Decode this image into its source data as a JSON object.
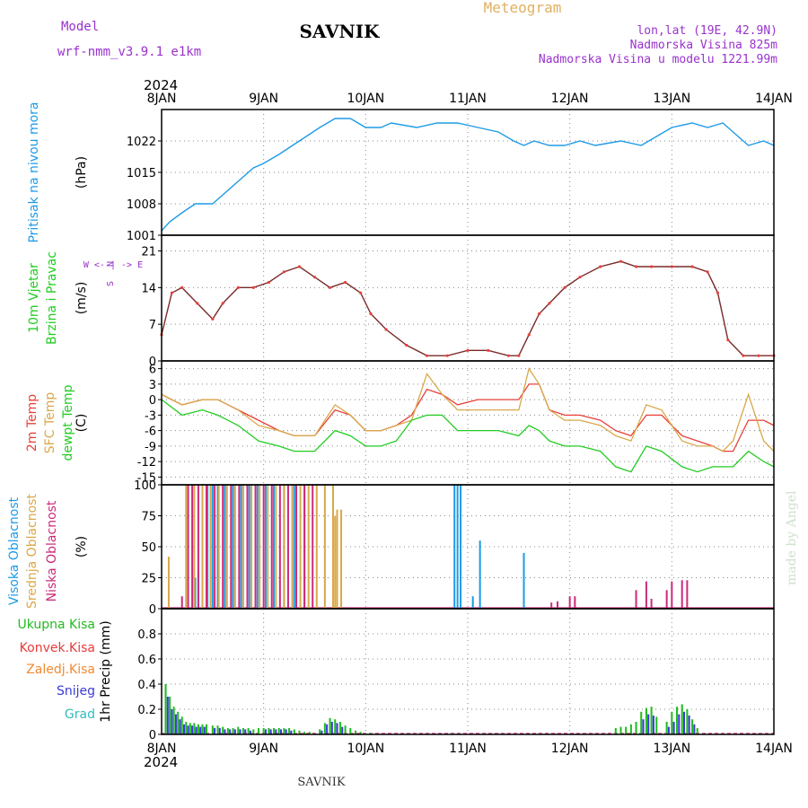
{
  "header": {
    "model_label": "Model",
    "model_name": "wrf-nmm_v3.9.1 e1km",
    "title": "SAVNIK",
    "subtitle": "Meteogram",
    "lonlat": "lon,lat (19E, 42.9N)",
    "altitude": "Nadmorska Visina 825m",
    "model_altitude": "Nadmorska Visina u modelu 1221.99m",
    "year_top": "2024",
    "year_bottom": "2024",
    "footer": "SAVNIK",
    "watermark": "made by Angel"
  },
  "colors": {
    "pressure": "#1e9be6",
    "temp2m": "#e8403a",
    "sfc": "#d9a84a",
    "dew": "#22cc22",
    "high_cloud": "#1e9be6",
    "mid_cloud": "#d9a84a",
    "low_cloud": "#cc2a7a",
    "total_precip": "#22bb22",
    "conv_precip": "#e83a3a",
    "frozen_precip": "#f08a30",
    "snow": "#3a3ad8",
    "hail": "#33bbbb",
    "wind_label": "#22cc22",
    "wind_axis": "#9932cc",
    "header_purple": "#9932cc",
    "header_gold": "#e0b060"
  },
  "x_axis": {
    "days": [
      "8JAN",
      "9JAN",
      "10JAN",
      "11JAN",
      "12JAN",
      "13JAN",
      "14JAN"
    ]
  },
  "chart_data": [
    {
      "id": "pressure",
      "type": "line",
      "ylabel_lines": [
        "Pritisak na nivou mora"
      ],
      "unit": "(hPa)",
      "ylim": [
        1001,
        1029
      ],
      "yticks": [
        1001,
        1008,
        1015,
        1022
      ],
      "x_days": [
        0,
        0.08,
        0.2,
        0.33,
        0.5,
        0.6,
        0.75,
        0.9,
        1.0,
        1.15,
        1.35,
        1.55,
        1.7,
        1.85,
        2.0,
        2.15,
        2.25,
        2.5,
        2.7,
        2.9,
        3.1,
        3.3,
        3.45,
        3.55,
        3.65,
        3.8,
        3.95,
        4.1,
        4.25,
        4.5,
        4.7,
        4.85,
        5.0,
        5.2,
        5.35,
        5.5,
        5.6,
        5.75,
        5.9,
        6.0
      ],
      "values": [
        1002,
        1004,
        1006,
        1008,
        1008,
        1010,
        1013,
        1016,
        1017,
        1019,
        1022,
        1025,
        1027,
        1027,
        1025,
        1025,
        1026,
        1025,
        1026,
        1026,
        1025,
        1024,
        1022,
        1021,
        1022,
        1021,
        1021,
        1022,
        1021,
        1022,
        1021,
        1023,
        1025,
        1026,
        1025,
        1026,
        1024,
        1021,
        1022,
        1021
      ],
      "grid": true
    },
    {
      "id": "wind",
      "type": "line",
      "ylabel_lines": [
        "10m Vjetar",
        "Brzina i Pravac"
      ],
      "unit": "(m/s)",
      "direction_key": [
        "N",
        "W <- | -> E",
        "S"
      ],
      "ylim": [
        0,
        24
      ],
      "yticks": [
        0,
        7,
        14,
        21
      ],
      "x_days": [
        0,
        0.1,
        0.2,
        0.35,
        0.5,
        0.6,
        0.75,
        0.9,
        1.05,
        1.2,
        1.35,
        1.5,
        1.65,
        1.8,
        1.95,
        2.05,
        2.2,
        2.4,
        2.6,
        2.8,
        3.0,
        3.2,
        3.4,
        3.5,
        3.6,
        3.7,
        3.8,
        3.95,
        4.1,
        4.3,
        4.5,
        4.65,
        4.8,
        5.0,
        5.2,
        5.35,
        5.45,
        5.55,
        5.7,
        5.85,
        6.0
      ],
      "values": [
        5,
        13,
        14,
        11,
        8,
        11,
        14,
        14,
        15,
        17,
        18,
        16,
        14,
        15,
        13,
        9,
        6,
        3,
        1,
        1,
        2,
        2,
        1,
        1,
        5,
        9,
        11,
        14,
        16,
        18,
        19,
        18,
        18,
        18,
        18,
        17,
        13,
        4,
        1,
        1,
        1
      ],
      "grid": true
    },
    {
      "id": "temperature",
      "type": "line",
      "ylabel_lines": [
        "2m Temp",
        "SFC Temp",
        "dewpt Temp"
      ],
      "unit": "(C)",
      "ylim": [
        -16.5,
        7.5
      ],
      "yticks": [
        -15,
        -12,
        -9,
        -6,
        -3,
        0,
        3,
        6
      ],
      "x_days": [
        0,
        0.2,
        0.4,
        0.55,
        0.75,
        0.95,
        1.15,
        1.3,
        1.5,
        1.7,
        1.85,
        2.0,
        2.15,
        2.3,
        2.45,
        2.6,
        2.75,
        2.9,
        3.1,
        3.3,
        3.5,
        3.6,
        3.7,
        3.8,
        3.95,
        4.1,
        4.3,
        4.45,
        4.6,
        4.75,
        4.9,
        5.1,
        5.25,
        5.4,
        5.5,
        5.6,
        5.75,
        5.9,
        6.0
      ],
      "series": [
        {
          "name": "2m Temp",
          "color_key": "temp2m",
          "values": [
            1,
            -1,
            0,
            0,
            -2,
            -4,
            -6,
            -7,
            -7,
            -2,
            -3,
            -6,
            -6,
            -5,
            -3,
            2,
            1,
            -1,
            0,
            0,
            0,
            3,
            3,
            -2,
            -3,
            -3,
            -4,
            -6,
            -7,
            -3,
            -3,
            -7,
            -8,
            -9,
            -10,
            -10,
            -4,
            -4,
            -5
          ]
        },
        {
          "name": "SFC Temp",
          "color_key": "sfc",
          "values": [
            1,
            -1,
            0,
            0,
            -2,
            -5,
            -6,
            -7,
            -7,
            -1,
            -3,
            -6,
            -6,
            -5,
            -4,
            5,
            1,
            -2,
            -2,
            -2,
            -2,
            6,
            3,
            -2,
            -4,
            -4,
            -5,
            -7,
            -8,
            -1,
            -2,
            -8,
            -9,
            -9,
            -10,
            -8,
            1,
            -8,
            -10
          ]
        },
        {
          "name": "dewpt Temp",
          "color_key": "dew",
          "values": [
            0,
            -3,
            -2,
            -3,
            -5,
            -8,
            -9,
            -10,
            -10,
            -6,
            -7,
            -9,
            -9,
            -8,
            -4,
            -3,
            -3,
            -6,
            -6,
            -6,
            -7,
            -5,
            -6,
            -8,
            -9,
            -9,
            -10,
            -13,
            -14,
            -9,
            -10,
            -13,
            -14,
            -13,
            -13,
            -13,
            -10,
            -12,
            -13
          ]
        }
      ],
      "grid": true
    },
    {
      "id": "clouds",
      "type": "bar",
      "ylabel_lines": [
        "Visoka Oblacnost",
        "Srednja Oblacnost",
        "Niska Oblacnost"
      ],
      "unit": "(%)",
      "ylim": [
        0,
        100
      ],
      "yticks": [
        0,
        25,
        50,
        75,
        100
      ],
      "bar_width_days": 0.012,
      "series": [
        {
          "name": "Visoka Oblacnost",
          "color_key": "high_cloud",
          "x_days": [
            0.33,
            0.36,
            0.45,
            0.5,
            0.55,
            0.62,
            0.7,
            0.78,
            0.86,
            0.94,
            1.02,
            1.1,
            1.2,
            1.3,
            1.4,
            2.87,
            2.9,
            2.93,
            3.05,
            3.12,
            3.55
          ],
          "values": [
            25,
            30,
            100,
            100,
            100,
            100,
            100,
            100,
            100,
            100,
            100,
            100,
            100,
            100,
            100,
            100,
            100,
            100,
            10,
            55,
            45
          ]
        },
        {
          "name": "Srednja Oblacnost",
          "color_key": "mid_cloud",
          "x_days": [
            0.07,
            0.24,
            0.32,
            0.4,
            0.48,
            0.56,
            0.64,
            0.72,
            0.8,
            0.88,
            0.96,
            1.04,
            1.12,
            1.2,
            1.28,
            1.36,
            1.44,
            1.52,
            1.6,
            1.68,
            1.7,
            1.72,
            1.76
          ],
          "values": [
            42,
            100,
            100,
            100,
            100,
            100,
            100,
            100,
            100,
            100,
            100,
            100,
            100,
            100,
            100,
            100,
            100,
            100,
            100,
            100,
            75,
            80,
            80
          ]
        },
        {
          "name": "Niska Oblacnost",
          "color_key": "low_cloud",
          "x_days": [
            0.2,
            0.26,
            0.3,
            0.36,
            0.44,
            0.52,
            0.6,
            0.68,
            0.76,
            0.84,
            0.92,
            1.0,
            1.08,
            1.16,
            1.24,
            1.32,
            1.4,
            1.48,
            3.82,
            3.88,
            4.0,
            4.05,
            4.65,
            4.75,
            4.8,
            4.95,
            5.0,
            5.1,
            5.15
          ],
          "values": [
            10,
            100,
            100,
            100,
            100,
            100,
            100,
            100,
            100,
            100,
            100,
            100,
            100,
            100,
            100,
            100,
            100,
            100,
            5,
            6,
            10,
            10,
            15,
            22,
            8,
            15,
            22,
            23,
            23
          ]
        }
      ],
      "grid": true
    },
    {
      "id": "precipitation",
      "type": "bar",
      "ylabel_lines": [
        "Ukupna Kisa",
        "Konvek.Kisa",
        "Zaledj.Kisa",
        "Snijeg",
        "Grad"
      ],
      "unit": "1hr Precip (mm)",
      "ylim": [
        0,
        1.0
      ],
      "yticks": [
        0,
        0.2,
        0.4,
        0.6,
        0.8
      ],
      "bar_width_days": 0.018,
      "series": [
        {
          "name": "Ukupna Kisa",
          "color_key": "total_precip",
          "x_days": [
            0.04,
            0.08,
            0.12,
            0.16,
            0.2,
            0.24,
            0.28,
            0.32,
            0.36,
            0.4,
            0.44,
            0.5,
            0.55,
            0.6,
            0.65,
            0.7,
            0.75,
            0.8,
            0.85,
            0.9,
            0.95,
            1.0,
            1.05,
            1.1,
            1.15,
            1.2,
            1.25,
            1.3,
            1.35,
            1.4,
            1.45,
            1.55,
            1.6,
            1.65,
            1.7,
            1.75,
            1.8,
            1.85,
            1.9,
            1.95,
            2.0,
            2.05,
            4.45,
            4.5,
            4.55,
            4.6,
            4.65,
            4.7,
            4.75,
            4.8,
            4.85,
            4.95,
            5.0,
            5.05,
            5.1,
            5.15,
            5.2,
            5.25
          ],
          "values": [
            0.4,
            0.3,
            0.22,
            0.18,
            0.14,
            0.1,
            0.09,
            0.09,
            0.08,
            0.08,
            0.08,
            0.07,
            0.07,
            0.06,
            0.05,
            0.05,
            0.06,
            0.05,
            0.05,
            0.04,
            0.05,
            0.05,
            0.05,
            0.05,
            0.05,
            0.05,
            0.05,
            0.04,
            0.03,
            0.02,
            0.02,
            0.04,
            0.09,
            0.13,
            0.12,
            0.1,
            0.07,
            0.05,
            0.03,
            0.02,
            0.01,
            0.01,
            0.05,
            0.06,
            0.06,
            0.08,
            0.1,
            0.18,
            0.21,
            0.22,
            0.14,
            0.1,
            0.18,
            0.22,
            0.24,
            0.2,
            0.12,
            0.05
          ]
        },
        {
          "name": "Snijeg",
          "color_key": "snow",
          "x_days": [
            0.06,
            0.1,
            0.14,
            0.18,
            0.22,
            0.26,
            0.3,
            0.34,
            0.38,
            0.42,
            0.52,
            0.57,
            0.62,
            0.67,
            0.72,
            0.77,
            0.82,
            0.87,
            1.02,
            1.07,
            1.12,
            1.17,
            1.22,
            1.27,
            1.57,
            1.62,
            1.67,
            1.72,
            1.77,
            4.72,
            4.77,
            4.82,
            4.97,
            5.02,
            5.07,
            5.12,
            5.17,
            5.22
          ],
          "values": [
            0.3,
            0.2,
            0.16,
            0.12,
            0.08,
            0.07,
            0.07,
            0.06,
            0.06,
            0.06,
            0.05,
            0.05,
            0.04,
            0.04,
            0.04,
            0.04,
            0.04,
            0.03,
            0.04,
            0.04,
            0.04,
            0.04,
            0.04,
            0.03,
            0.03,
            0.08,
            0.1,
            0.09,
            0.06,
            0.12,
            0.16,
            0.15,
            0.06,
            0.1,
            0.16,
            0.18,
            0.15,
            0.08
          ]
        }
      ],
      "grid": true
    }
  ]
}
